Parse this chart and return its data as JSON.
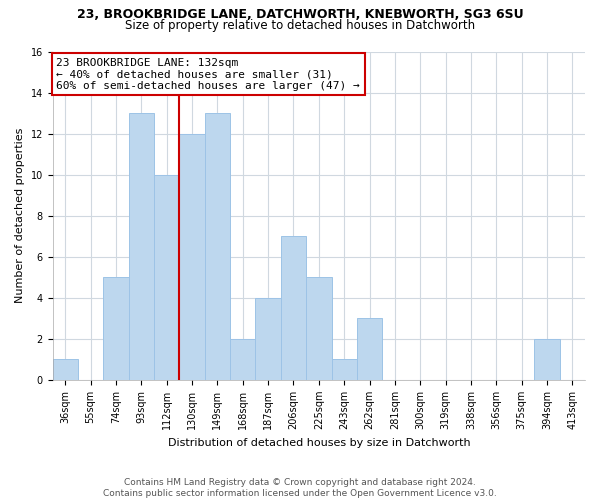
{
  "title1": "23, BROOKBRIDGE LANE, DATCHWORTH, KNEBWORTH, SG3 6SU",
  "title2": "Size of property relative to detached houses in Datchworth",
  "xlabel": "Distribution of detached houses by size in Datchworth",
  "ylabel": "Number of detached properties",
  "bin_labels": [
    "36sqm",
    "55sqm",
    "74sqm",
    "93sqm",
    "112sqm",
    "130sqm",
    "149sqm",
    "168sqm",
    "187sqm",
    "206sqm",
    "225sqm",
    "243sqm",
    "262sqm",
    "281sqm",
    "300sqm",
    "319sqm",
    "338sqm",
    "356sqm",
    "375sqm",
    "394sqm",
    "413sqm"
  ],
  "bar_heights": [
    1,
    0,
    5,
    13,
    10,
    12,
    13,
    2,
    4,
    7,
    5,
    1,
    3,
    0,
    0,
    0,
    0,
    0,
    0,
    2,
    0
  ],
  "bar_color": "#bdd7ee",
  "bar_edge_color": "#9dc3e6",
  "vline_color": "#cc0000",
  "vline_position": 5,
  "annotation_line1": "23 BROOKBRIDGE LANE: 132sqm",
  "annotation_line2": "← 40% of detached houses are smaller (31)",
  "annotation_line3": "60% of semi-detached houses are larger (47) →",
  "annotation_box_edge": "#cc0000",
  "ylim": [
    0,
    16
  ],
  "yticks": [
    0,
    2,
    4,
    6,
    8,
    10,
    12,
    14,
    16
  ],
  "footnote1": "Contains HM Land Registry data © Crown copyright and database right 2024.",
  "footnote2": "Contains public sector information licensed under the Open Government Licence v3.0.",
  "background_color": "#ffffff",
  "grid_color": "#d0d8e0",
  "title1_fontsize": 9,
  "title2_fontsize": 8.5,
  "annotation_fontsize": 8,
  "axis_label_fontsize": 8,
  "tick_fontsize": 7,
  "footnote_fontsize": 6.5
}
